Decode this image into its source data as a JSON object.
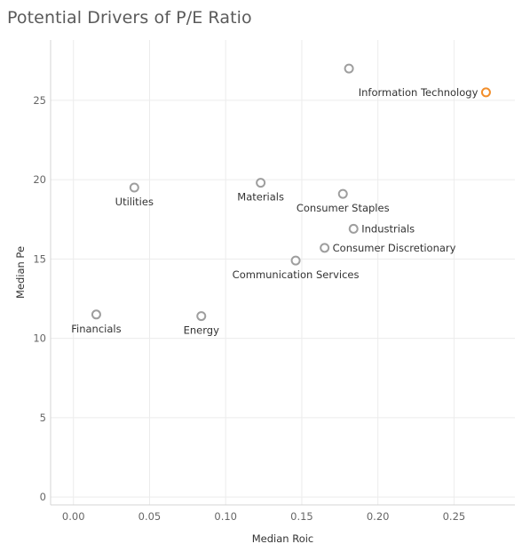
{
  "chart_data": {
    "type": "scatter",
    "title": "Potential Drivers of P/E Ratio",
    "xlabel": "Median Roic",
    "ylabel": "Median Pe",
    "xlim": [
      -0.015,
      0.29
    ],
    "ylim": [
      -0.5,
      28.8
    ],
    "x_ticks": [
      0.0,
      0.05,
      0.1,
      0.15,
      0.2,
      0.25
    ],
    "x_tick_labels": [
      "0.00",
      "0.05",
      "0.10",
      "0.15",
      "0.20",
      "0.25"
    ],
    "y_ticks": [
      0,
      5,
      10,
      15,
      20,
      25
    ],
    "y_tick_labels": [
      "0",
      "5",
      "10",
      "15",
      "20",
      "25"
    ],
    "grid": true,
    "colors": {
      "default": "#9e9e9e",
      "highlight": "#f28e2b"
    },
    "points": [
      {
        "label": "",
        "x": 0.181,
        "y": 27.0,
        "highlight": false,
        "label_pos": "none"
      },
      {
        "label": "Information Technology",
        "x": 0.271,
        "y": 25.5,
        "highlight": true,
        "label_pos": "left"
      },
      {
        "label": "Utilities",
        "x": 0.04,
        "y": 19.5,
        "highlight": false,
        "label_pos": "below"
      },
      {
        "label": "Materials",
        "x": 0.123,
        "y": 19.8,
        "highlight": false,
        "label_pos": "below"
      },
      {
        "label": "Consumer Staples",
        "x": 0.177,
        "y": 19.1,
        "highlight": false,
        "label_pos": "below"
      },
      {
        "label": "Industrials",
        "x": 0.184,
        "y": 16.9,
        "highlight": false,
        "label_pos": "right"
      },
      {
        "label": "Consumer Discretionary",
        "x": 0.165,
        "y": 15.7,
        "highlight": false,
        "label_pos": "right"
      },
      {
        "label": "Communication Services",
        "x": 0.146,
        "y": 14.9,
        "highlight": false,
        "label_pos": "below"
      },
      {
        "label": "Financials",
        "x": 0.015,
        "y": 11.5,
        "highlight": false,
        "label_pos": "below"
      },
      {
        "label": "Energy",
        "x": 0.084,
        "y": 11.4,
        "highlight": false,
        "label_pos": "below"
      }
    ]
  }
}
